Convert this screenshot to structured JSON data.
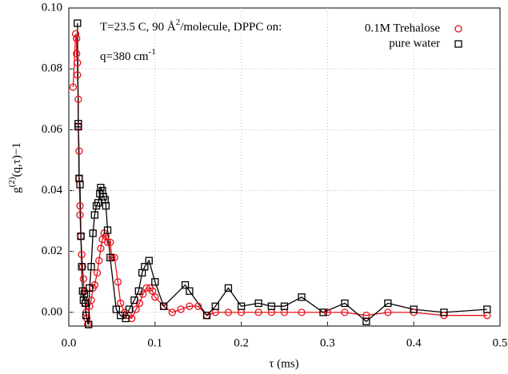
{
  "chart_data": {
    "type": "scatter",
    "annotations": [
      {
        "text": "T=23.5 C, 90 Å",
        "sup": "2",
        "rest": "/molecule, DPPC on:"
      },
      {
        "text": "q=380 cm",
        "sup": "-1"
      }
    ],
    "x_label": "τ (ms)",
    "y_label": {
      "text": "g",
      "sup": "(2)",
      "rest": "(q,τ)−1"
    },
    "xlim": [
      0,
      0.5
    ],
    "ylim": [
      -0.0045,
      0.1
    ],
    "xticks": [
      {
        "value": 0,
        "label": "0.0"
      },
      0.1,
      0.2,
      0.3,
      0.4,
      0.5
    ],
    "yticks": [
      {
        "value": 0,
        "label": "0.00"
      },
      {
        "value": 0.02,
        "label": "0.02"
      },
      {
        "value": 0.04,
        "label": "0.04"
      },
      {
        "value": 0.06,
        "label": "0.06"
      },
      {
        "value": 0.08,
        "label": "0.08"
      },
      {
        "value": 0.1,
        "label": "0.10"
      }
    ],
    "grid": true,
    "legend": "top-right",
    "series": [
      {
        "name": "0.1M Trehalose",
        "color": "#e8101a",
        "marker": "circle",
        "x": [
          0.005,
          0.008,
          0.009,
          0.009,
          0.01,
          0.01,
          0.011,
          0.011,
          0.012,
          0.012,
          0.013,
          0.013,
          0.014,
          0.015,
          0.016,
          0.017,
          0.018,
          0.019,
          0.02,
          0.021,
          0.022,
          0.024,
          0.026,
          0.028,
          0.03,
          0.033,
          0.035,
          0.037,
          0.039,
          0.041,
          0.043,
          0.045,
          0.048,
          0.05,
          0.053,
          0.057,
          0.06,
          0.065,
          0.069,
          0.073,
          0.078,
          0.082,
          0.086,
          0.09,
          0.094,
          0.097,
          0.1,
          0.11,
          0.12,
          0.13,
          0.14,
          0.15,
          0.16,
          0.17,
          0.185,
          0.2,
          0.22,
          0.235,
          0.25,
          0.27,
          0.3,
          0.32,
          0.345,
          0.37,
          0.4,
          0.435,
          0.485
        ],
        "values": [
          0.074,
          0.0915,
          0.09,
          0.085,
          0.082,
          0.078,
          0.07,
          0.061,
          0.053,
          0.044,
          0.035,
          0.032,
          0.025,
          0.019,
          0.015,
          0.011,
          0.007,
          0.003,
          0.0,
          -0.002,
          -0.004,
          0.002,
          0.004,
          0.008,
          0.009,
          0.013,
          0.017,
          0.021,
          0.024,
          0.026,
          0.025,
          0.023,
          0.023,
          0.018,
          0.018,
          0.01,
          0.003,
          0.0,
          -0.001,
          -0.002,
          0.001,
          0.003,
          0.006,
          0.008,
          0.008,
          0.007,
          0.005,
          0.002,
          0.0,
          0.001,
          0.002,
          0.002,
          -0.001,
          0.0,
          0.0,
          0.0,
          0.0,
          0.0,
          0.0,
          0.0,
          0.0,
          0.0,
          -0.001,
          0.0,
          0.0,
          -0.001,
          -0.001
        ]
      },
      {
        "name": "pure water",
        "color": "#000000",
        "marker": "square",
        "x": [
          0.01,
          0.011,
          0.011,
          0.012,
          0.013,
          0.014,
          0.015,
          0.016,
          0.017,
          0.018,
          0.019,
          0.02,
          0.023,
          0.024,
          0.026,
          0.028,
          0.03,
          0.032,
          0.034,
          0.036,
          0.037,
          0.039,
          0.04,
          0.042,
          0.043,
          0.045,
          0.048,
          0.055,
          0.06,
          0.066,
          0.07,
          0.076,
          0.081,
          0.085,
          0.088,
          0.093,
          0.1,
          0.11,
          0.135,
          0.14,
          0.16,
          0.17,
          0.185,
          0.2,
          0.22,
          0.235,
          0.25,
          0.27,
          0.295,
          0.32,
          0.345,
          0.37,
          0.4,
          0.435,
          0.485
        ],
        "values": [
          0.095,
          0.062,
          0.061,
          0.044,
          0.042,
          0.025,
          0.015,
          0.007,
          0.004,
          0.006,
          0.003,
          -0.001,
          -0.004,
          0.008,
          0.015,
          0.026,
          0.032,
          0.035,
          0.036,
          0.039,
          0.041,
          0.04,
          0.038,
          0.037,
          0.035,
          0.027,
          0.018,
          0.001,
          -0.001,
          -0.002,
          0.001,
          0.004,
          0.007,
          0.013,
          0.015,
          0.017,
          0.01,
          0.002,
          0.009,
          0.007,
          -0.001,
          0.002,
          0.008,
          0.002,
          0.003,
          0.002,
          0.002,
          0.005,
          0.0,
          0.003,
          -0.003,
          0.003,
          0.001,
          0.0,
          0.001
        ]
      }
    ]
  }
}
